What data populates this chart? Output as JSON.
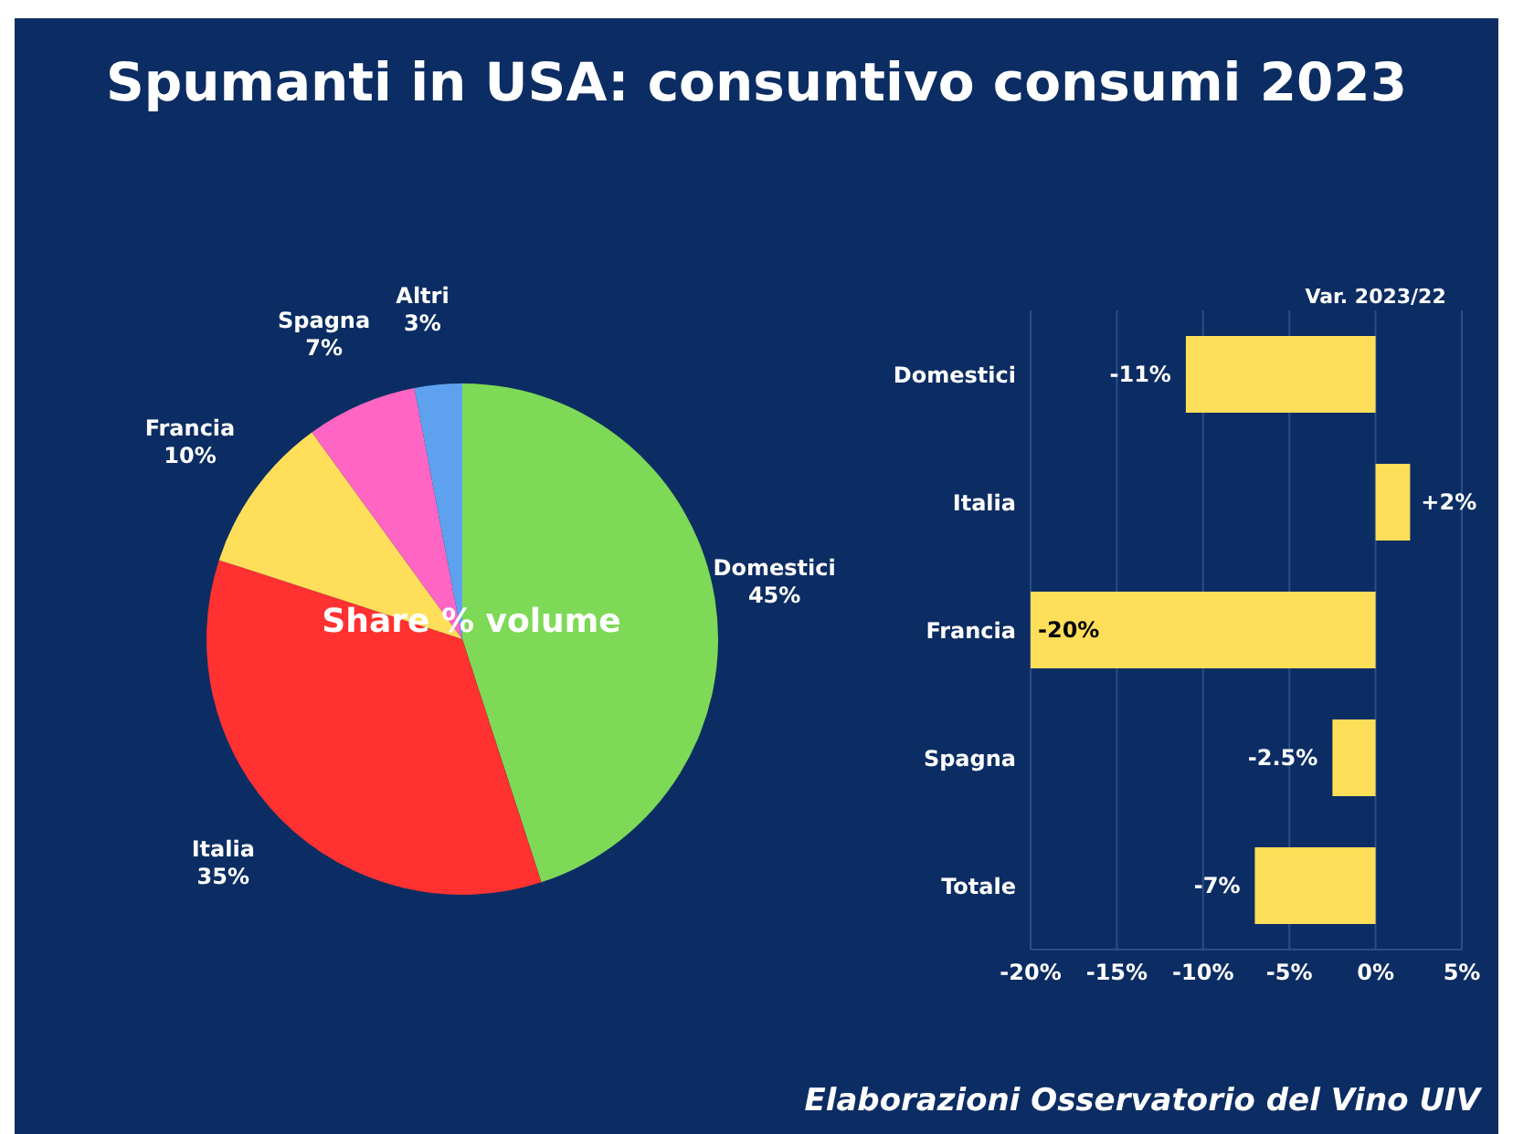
{
  "chart_data": [
    {
      "type": "pie",
      "title": "Spumanti in USA: consuntivo consumi 2023",
      "subtitle": "Share % volume",
      "categories": [
        "Domestici",
        "Italia",
        "Francia",
        "Spagna",
        "Altri"
      ],
      "values": [
        45,
        35,
        10,
        7,
        3
      ],
      "colors": [
        "#7ed957",
        "#ff3131",
        "#ffde59",
        "#ff66c4",
        "#5ea2ef"
      ],
      "value_labels": [
        "45%",
        "35%",
        "10%",
        "7%",
        "3%"
      ],
      "annotations": [
        "Elaborazioni Osservatorio del Vino UIV"
      ]
    },
    {
      "type": "bar",
      "orientation": "horizontal",
      "title": "Var. 2023/22",
      "categories": [
        "Domestici",
        "Italia",
        "Francia",
        "Spagna",
        "Totale"
      ],
      "values": [
        -11,
        2,
        -20,
        -2.5,
        -7
      ],
      "color": "#ffde59",
      "value_labels": [
        "-11%",
        "+2%",
        "-20%",
        "-2.5%",
        "-7%"
      ],
      "xlim": [
        -20,
        5
      ],
      "xticks": [
        {
          "value": -20,
          "label": "-20%"
        },
        {
          "value": -15,
          "label": "-15%"
        },
        {
          "value": -10,
          "label": "-10%"
        },
        {
          "value": -5,
          "label": "-5%"
        },
        {
          "value": 0,
          "label": "0%"
        },
        {
          "value": 5,
          "label": "5%"
        }
      ],
      "grid": "x"
    }
  ]
}
